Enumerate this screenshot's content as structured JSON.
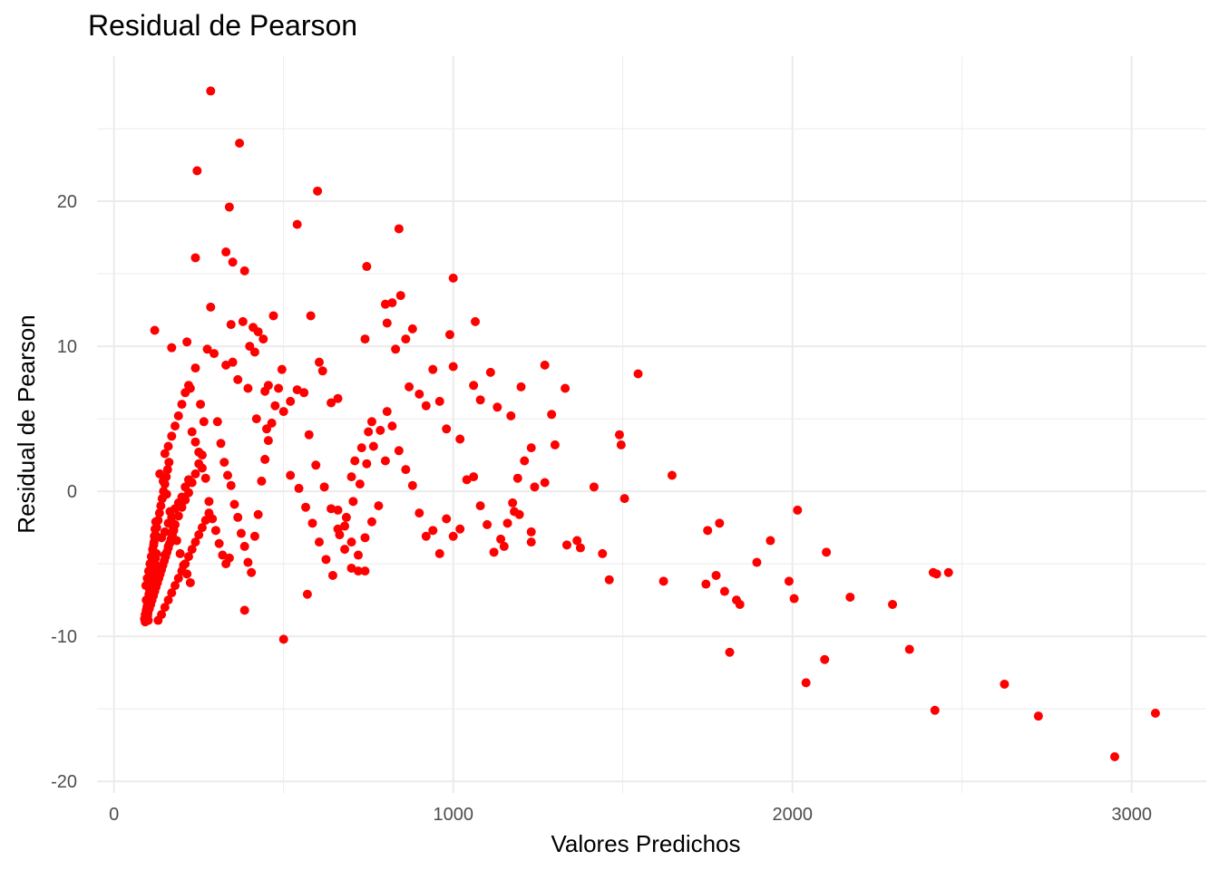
{
  "chart_data": {
    "type": "scatter",
    "title": "Residual de Pearson",
    "xlabel": "Valores Predichos",
    "ylabel": "Residual de Pearson",
    "xlim": [
      -50,
      3220
    ],
    "ylim": [
      -20.8,
      30
    ],
    "x_ticks": [
      0,
      1000,
      2000,
      3000
    ],
    "y_ticks": [
      -20,
      -10,
      0,
      10,
      20
    ],
    "grid": true,
    "point_color": "#ff0000",
    "points": [
      [
        90,
        -8.8
      ],
      [
        92,
        -8.5
      ],
      [
        95,
        -8.2
      ],
      [
        98,
        -7.9
      ],
      [
        100,
        -7.6
      ],
      [
        103,
        -7.3
      ],
      [
        105,
        -7.0
      ],
      [
        108,
        -6.7
      ],
      [
        110,
        -6.4
      ],
      [
        112,
        -6.1
      ],
      [
        114,
        -5.8
      ],
      [
        116,
        -5.5
      ],
      [
        118,
        -5.2
      ],
      [
        120,
        -4.9
      ],
      [
        122,
        -4.6
      ],
      [
        125,
        -4.3
      ],
      [
        92,
        -9.0
      ],
      [
        96,
        -8.7
      ],
      [
        100,
        -8.4
      ],
      [
        104,
        -8.1
      ],
      [
        108,
        -7.8
      ],
      [
        112,
        -7.5
      ],
      [
        116,
        -7.2
      ],
      [
        120,
        -6.9
      ],
      [
        124,
        -6.6
      ],
      [
        128,
        -6.3
      ],
      [
        132,
        -6.0
      ],
      [
        136,
        -5.7
      ],
      [
        140,
        -5.4
      ],
      [
        144,
        -5.1
      ],
      [
        148,
        -4.8
      ],
      [
        152,
        -4.5
      ],
      [
        156,
        -4.2
      ],
      [
        160,
        -3.9
      ],
      [
        164,
        -3.6
      ],
      [
        168,
        -3.3
      ],
      [
        172,
        -3.0
      ],
      [
        176,
        -2.7
      ],
      [
        94,
        -6.5
      ],
      [
        98,
        -6.0
      ],
      [
        102,
        -5.5
      ],
      [
        106,
        -5.0
      ],
      [
        110,
        -4.5
      ],
      [
        114,
        -4.0
      ],
      [
        118,
        -3.5
      ],
      [
        122,
        -3.0
      ],
      [
        126,
        -2.5
      ],
      [
        130,
        -2.0
      ],
      [
        134,
        -1.5
      ],
      [
        138,
        -1.0
      ],
      [
        142,
        -0.5
      ],
      [
        146,
        0.0
      ],
      [
        150,
        0.5
      ],
      [
        154,
        1.0
      ],
      [
        158,
        1.5
      ],
      [
        162,
        2.0
      ],
      [
        95,
        -7.5
      ],
      [
        97,
        -8.0
      ],
      [
        99,
        -8.6
      ],
      [
        101,
        -8.9
      ],
      [
        103,
        -7.1
      ],
      [
        105,
        -6.8
      ],
      [
        107,
        -6.2
      ],
      [
        109,
        -5.9
      ],
      [
        111,
        -5.3
      ],
      [
        113,
        -4.7
      ],
      [
        115,
        -4.1
      ],
      [
        117,
        -3.7
      ],
      [
        119,
        -3.1
      ],
      [
        121,
        -2.6
      ],
      [
        123,
        -2.1
      ],
      [
        140,
        -3.2
      ],
      [
        150,
        -2.8
      ],
      [
        160,
        -2.2
      ],
      [
        170,
        -1.8
      ],
      [
        180,
        -1.2
      ],
      [
        190,
        -0.8
      ],
      [
        200,
        -0.4
      ],
      [
        210,
        0.3
      ],
      [
        220,
        0.8
      ],
      [
        130,
        -8.9
      ],
      [
        140,
        -8.5
      ],
      [
        150,
        -8.0
      ],
      [
        160,
        -7.5
      ],
      [
        170,
        -7.0
      ],
      [
        180,
        -6.5
      ],
      [
        190,
        -6.0
      ],
      [
        200,
        -5.5
      ],
      [
        210,
        -5.0
      ],
      [
        220,
        -4.5
      ],
      [
        230,
        -4.0
      ],
      [
        240,
        -3.5
      ],
      [
        250,
        -3.0
      ],
      [
        260,
        -2.5
      ],
      [
        270,
        -2.0
      ],
      [
        280,
        -1.5
      ],
      [
        130,
        -5.8
      ],
      [
        140,
        -5.2
      ],
      [
        150,
        -4.4
      ],
      [
        160,
        -3.8
      ],
      [
        170,
        -2.9
      ],
      [
        180,
        -2.3
      ],
      [
        190,
        -1.7
      ],
      [
        200,
        -1.1
      ],
      [
        210,
        -0.6
      ],
      [
        220,
        -0.1
      ],
      [
        230,
        0.6
      ],
      [
        240,
        1.2
      ],
      [
        250,
        1.9
      ],
      [
        260,
        2.5
      ],
      [
        135,
        1.2
      ],
      [
        145,
        0.7
      ],
      [
        155,
        -0.2
      ],
      [
        165,
        -1.4
      ],
      [
        175,
        -2.6
      ],
      [
        185,
        -3.4
      ],
      [
        195,
        -4.3
      ],
      [
        205,
        -5.1
      ],
      [
        215,
        -5.7
      ],
      [
        225,
        -6.3
      ],
      [
        150,
        2.6
      ],
      [
        160,
        3.1
      ],
      [
        170,
        3.8
      ],
      [
        180,
        4.5
      ],
      [
        190,
        5.2
      ],
      [
        200,
        6.0
      ],
      [
        210,
        6.8
      ],
      [
        220,
        7.3
      ],
      [
        230,
        4.1
      ],
      [
        240,
        3.4
      ],
      [
        250,
        2.7
      ],
      [
        260,
        1.6
      ],
      [
        270,
        0.9
      ],
      [
        280,
        -0.7
      ],
      [
        290,
        -1.9
      ],
      [
        300,
        -2.7
      ],
      [
        310,
        -3.6
      ],
      [
        320,
        -4.4
      ],
      [
        330,
        -5.0
      ],
      [
        340,
        -4.6
      ],
      [
        120,
        11.1
      ],
      [
        170,
        9.9
      ],
      [
        215,
        10.3
      ],
      [
        225,
        7.1
      ],
      [
        240,
        8.5
      ],
      [
        255,
        6.0
      ],
      [
        265,
        4.8
      ],
      [
        275,
        9.8
      ],
      [
        285,
        12.7
      ],
      [
        295,
        9.5
      ],
      [
        305,
        4.8
      ],
      [
        315,
        3.3
      ],
      [
        325,
        2.0
      ],
      [
        335,
        1.1
      ],
      [
        345,
        0.4
      ],
      [
        355,
        -0.9
      ],
      [
        365,
        -1.8
      ],
      [
        375,
        -2.9
      ],
      [
        385,
        -3.8
      ],
      [
        395,
        -4.9
      ],
      [
        405,
        -5.6
      ],
      [
        415,
        -3.1
      ],
      [
        425,
        -1.6
      ],
      [
        435,
        0.7
      ],
      [
        445,
        2.2
      ],
      [
        455,
        3.5
      ],
      [
        465,
        4.7
      ],
      [
        475,
        5.9
      ],
      [
        485,
        7.1
      ],
      [
        495,
        8.4
      ],
      [
        245,
        22.1
      ],
      [
        285,
        27.6
      ],
      [
        340,
        19.6
      ],
      [
        370,
        24.0
      ],
      [
        240,
        16.1
      ],
      [
        330,
        16.5
      ],
      [
        350,
        15.8
      ],
      [
        385,
        15.2
      ],
      [
        345,
        11.5
      ],
      [
        380,
        11.7
      ],
      [
        410,
        11.3
      ],
      [
        425,
        11.0
      ],
      [
        470,
        12.1
      ],
      [
        440,
        10.5
      ],
      [
        330,
        8.7
      ],
      [
        350,
        8.9
      ],
      [
        400,
        10.0
      ],
      [
        415,
        9.6
      ],
      [
        445,
        6.9
      ],
      [
        455,
        7.3
      ],
      [
        365,
        7.7
      ],
      [
        395,
        7.1
      ],
      [
        420,
        5.0
      ],
      [
        450,
        4.3
      ],
      [
        500,
        5.5
      ],
      [
        520,
        6.2
      ],
      [
        540,
        7.0
      ],
      [
        560,
        6.8
      ],
      [
        580,
        12.1
      ],
      [
        600,
        20.7
      ],
      [
        540,
        18.4
      ],
      [
        605,
        8.9
      ],
      [
        615,
        8.3
      ],
      [
        575,
        3.9
      ],
      [
        595,
        1.8
      ],
      [
        620,
        0.3
      ],
      [
        640,
        -1.2
      ],
      [
        660,
        -2.6
      ],
      [
        680,
        -4.0
      ],
      [
        700,
        -5.3
      ],
      [
        720,
        -5.5
      ],
      [
        740,
        -5.5
      ],
      [
        500,
        -10.2
      ],
      [
        570,
        -7.1
      ],
      [
        385,
        -8.2
      ],
      [
        520,
        1.1
      ],
      [
        545,
        0.2
      ],
      [
        565,
        -1.1
      ],
      [
        585,
        -2.2
      ],
      [
        605,
        -3.5
      ],
      [
        625,
        -4.7
      ],
      [
        645,
        -5.8
      ],
      [
        665,
        -3.0
      ],
      [
        685,
        -1.8
      ],
      [
        705,
        -0.7
      ],
      [
        725,
        0.5
      ],
      [
        745,
        1.9
      ],
      [
        765,
        3.1
      ],
      [
        785,
        4.2
      ],
      [
        805,
        5.5
      ],
      [
        640,
        6.1
      ],
      [
        660,
        6.4
      ],
      [
        700,
        1.0
      ],
      [
        710,
        2.1
      ],
      [
        730,
        3.0
      ],
      [
        750,
        4.1
      ],
      [
        760,
        4.8
      ],
      [
        740,
        10.5
      ],
      [
        745,
        15.5
      ],
      [
        800,
        12.9
      ],
      [
        805,
        11.6
      ],
      [
        820,
        13.0
      ],
      [
        845,
        13.5
      ],
      [
        840,
        18.1
      ],
      [
        860,
        10.5
      ],
      [
        880,
        11.2
      ],
      [
        830,
        9.8
      ],
      [
        870,
        7.2
      ],
      [
        900,
        6.7
      ],
      [
        920,
        5.9
      ],
      [
        940,
        8.4
      ],
      [
        960,
        6.2
      ],
      [
        980,
        4.3
      ],
      [
        1000,
        8.6
      ],
      [
        1000,
        14.7
      ],
      [
        990,
        10.8
      ],
      [
        1020,
        3.6
      ],
      [
        1060,
        7.3
      ],
      [
        1065,
        11.7
      ],
      [
        1080,
        6.3
      ],
      [
        1110,
        8.2
      ],
      [
        1130,
        5.8
      ],
      [
        1170,
        5.2
      ],
      [
        1200,
        7.2
      ],
      [
        1270,
        8.7
      ],
      [
        1290,
        5.3
      ],
      [
        1330,
        7.1
      ],
      [
        1300,
        3.2
      ],
      [
        1270,
        0.6
      ],
      [
        1240,
        0.3
      ],
      [
        1230,
        3.0
      ],
      [
        1210,
        2.1
      ],
      [
        1190,
        0.9
      ],
      [
        1175,
        -0.8
      ],
      [
        1160,
        -2.2
      ],
      [
        1140,
        -3.3
      ],
      [
        1120,
        -4.2
      ],
      [
        1100,
        -2.3
      ],
      [
        1080,
        -1.0
      ],
      [
        1060,
        1.0
      ],
      [
        1040,
        0.8
      ],
      [
        1020,
        -2.6
      ],
      [
        1000,
        -3.1
      ],
      [
        980,
        -1.9
      ],
      [
        960,
        -4.3
      ],
      [
        940,
        -2.7
      ],
      [
        920,
        -3.1
      ],
      [
        900,
        -1.5
      ],
      [
        880,
        0.4
      ],
      [
        860,
        1.5
      ],
      [
        840,
        2.8
      ],
      [
        820,
        4.5
      ],
      [
        800,
        2.1
      ],
      [
        780,
        -1.0
      ],
      [
        760,
        -2.1
      ],
      [
        740,
        -3.2
      ],
      [
        720,
        -4.4
      ],
      [
        700,
        -3.5
      ],
      [
        680,
        -2.4
      ],
      [
        660,
        -1.3
      ],
      [
        1230,
        -2.8
      ],
      [
        1230,
        -3.5
      ],
      [
        1195,
        -1.6
      ],
      [
        1180,
        -1.4
      ],
      [
        1150,
        -3.8
      ],
      [
        1335,
        -3.7
      ],
      [
        1365,
        -3.4
      ],
      [
        1375,
        -3.9
      ],
      [
        1415,
        0.3
      ],
      [
        1440,
        -4.3
      ],
      [
        1460,
        -6.1
      ],
      [
        1490,
        3.9
      ],
      [
        1495,
        3.2
      ],
      [
        1505,
        -0.5
      ],
      [
        1545,
        8.1
      ],
      [
        1620,
        -6.2
      ],
      [
        1645,
        1.1
      ],
      [
        1745,
        -6.4
      ],
      [
        1750,
        -2.7
      ],
      [
        1775,
        -5.8
      ],
      [
        1785,
        -2.2
      ],
      [
        1800,
        -6.9
      ],
      [
        1815,
        -11.1
      ],
      [
        1835,
        -7.5
      ],
      [
        1845,
        -7.8
      ],
      [
        1895,
        -4.9
      ],
      [
        1935,
        -3.4
      ],
      [
        1990,
        -6.2
      ],
      [
        2005,
        -7.4
      ],
      [
        2015,
        -1.3
      ],
      [
        2040,
        -13.2
      ],
      [
        2095,
        -11.6
      ],
      [
        2100,
        -4.2
      ],
      [
        2170,
        -7.3
      ],
      [
        2295,
        -7.8
      ],
      [
        2345,
        -10.9
      ],
      [
        2415,
        -5.6
      ],
      [
        2425,
        -5.7
      ],
      [
        2420,
        -15.1
      ],
      [
        2460,
        -5.6
      ],
      [
        2625,
        -13.3
      ],
      [
        2725,
        -15.5
      ],
      [
        2950,
        -18.3
      ],
      [
        3070,
        -15.3
      ]
    ]
  }
}
